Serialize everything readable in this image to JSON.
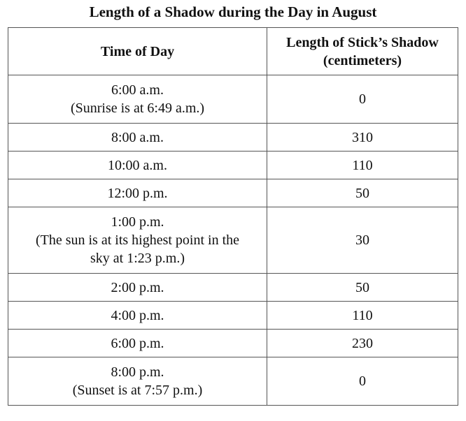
{
  "title": "Length of a Shadow during the Day in August",
  "table": {
    "headers": {
      "time": "Time of Day",
      "length_line1": "Length of Stick’s Shadow",
      "length_line2": "(centimeters)"
    },
    "rows": [
      {
        "time": "6:00 a.m.",
        "note_lines": [
          "(Sunrise is at 6:49 a.m.)"
        ],
        "length": "0"
      },
      {
        "time": "8:00 a.m.",
        "note_lines": [],
        "length": "310"
      },
      {
        "time": "10:00 a.m.",
        "note_lines": [],
        "length": "110"
      },
      {
        "time": "12:00 p.m.",
        "note_lines": [],
        "length": "50"
      },
      {
        "time": "1:00 p.m.",
        "note_lines": [
          "(The sun is at its highest point in the",
          "sky at 1:23 p.m.)"
        ],
        "length": "30"
      },
      {
        "time": "2:00 p.m.",
        "note_lines": [],
        "length": "50"
      },
      {
        "time": "4:00 p.m.",
        "note_lines": [],
        "length": "110"
      },
      {
        "time": "6:00 p.m.",
        "note_lines": [],
        "length": "230"
      },
      {
        "time": "8:00 p.m.",
        "note_lines": [
          "(Sunset is at 7:57 p.m.)"
        ],
        "length": "0"
      }
    ]
  }
}
